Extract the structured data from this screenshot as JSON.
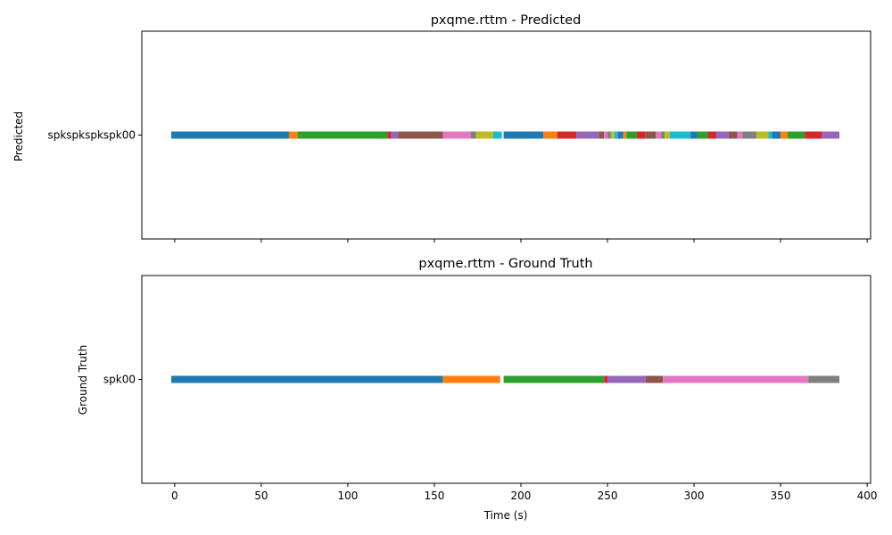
{
  "chart_data": [
    {
      "type": "timeline",
      "title": "pxqme.rttm - Predicted",
      "ylabel": "Predicted",
      "xlabel": "",
      "xlim": [
        -19,
        402
      ],
      "xticks": [
        0,
        50,
        100,
        150,
        200,
        250,
        300,
        350,
        400
      ],
      "show_xtick_labels": false,
      "grid": false,
      "rows": [
        "spkspkspkspk00"
      ],
      "segments": [
        {
          "start": -2,
          "end": 66,
          "color": "#1f77b4"
        },
        {
          "start": 66,
          "end": 71,
          "color": "#ff7f0e"
        },
        {
          "start": 71,
          "end": 123,
          "color": "#2ca02c"
        },
        {
          "start": 123,
          "end": 125,
          "color": "#d62728"
        },
        {
          "start": 125,
          "end": 129,
          "color": "#9467bd"
        },
        {
          "start": 129,
          "end": 155,
          "color": "#8c564b"
        },
        {
          "start": 155,
          "end": 171,
          "color": "#e377c2"
        },
        {
          "start": 171,
          "end": 174,
          "color": "#7f7f7f"
        },
        {
          "start": 174,
          "end": 184,
          "color": "#bcbd22"
        },
        {
          "start": 184,
          "end": 189,
          "color": "#17becf"
        },
        {
          "start": 190,
          "end": 213,
          "color": "#1f77b4"
        },
        {
          "start": 213,
          "end": 221,
          "color": "#ff7f0e"
        },
        {
          "start": 221,
          "end": 232,
          "color": "#d62728"
        },
        {
          "start": 232,
          "end": 245,
          "color": "#9467bd"
        },
        {
          "start": 245,
          "end": 248,
          "color": "#8c564b"
        },
        {
          "start": 248,
          "end": 250,
          "color": "#e377c2"
        },
        {
          "start": 250,
          "end": 252,
          "color": "#7f7f7f"
        },
        {
          "start": 252,
          "end": 254,
          "color": "#bcbd22"
        },
        {
          "start": 254,
          "end": 256,
          "color": "#17becf"
        },
        {
          "start": 256,
          "end": 259,
          "color": "#1f77b4"
        },
        {
          "start": 259,
          "end": 261,
          "color": "#ff7f0e"
        },
        {
          "start": 261,
          "end": 267,
          "color": "#2ca02c"
        },
        {
          "start": 267,
          "end": 272,
          "color": "#d62728"
        },
        {
          "start": 272,
          "end": 278,
          "color": "#8c564b"
        },
        {
          "start": 278,
          "end": 281,
          "color": "#e377c2"
        },
        {
          "start": 281,
          "end": 283,
          "color": "#7f7f7f"
        },
        {
          "start": 283,
          "end": 286,
          "color": "#bcbd22"
        },
        {
          "start": 286,
          "end": 298,
          "color": "#17becf"
        },
        {
          "start": 298,
          "end": 302,
          "color": "#1f77b4"
        },
        {
          "start": 302,
          "end": 308,
          "color": "#2ca02c"
        },
        {
          "start": 308,
          "end": 313,
          "color": "#d62728"
        },
        {
          "start": 313,
          "end": 320,
          "color": "#9467bd"
        },
        {
          "start": 320,
          "end": 325,
          "color": "#8c564b"
        },
        {
          "start": 325,
          "end": 328,
          "color": "#e377c2"
        },
        {
          "start": 328,
          "end": 336,
          "color": "#7f7f7f"
        },
        {
          "start": 336,
          "end": 343,
          "color": "#bcbd22"
        },
        {
          "start": 343,
          "end": 345,
          "color": "#17becf"
        },
        {
          "start": 345,
          "end": 350,
          "color": "#1f77b4"
        },
        {
          "start": 350,
          "end": 354,
          "color": "#ff7f0e"
        },
        {
          "start": 354,
          "end": 364,
          "color": "#2ca02c"
        },
        {
          "start": 364,
          "end": 374,
          "color": "#d62728"
        },
        {
          "start": 374,
          "end": 384,
          "color": "#9467bd"
        }
      ]
    },
    {
      "type": "timeline",
      "title": "pxqme.rttm - Ground Truth",
      "ylabel": "Ground Truth",
      "xlabel": "Time (s)",
      "xlim": [
        -19,
        402
      ],
      "xticks": [
        0,
        50,
        100,
        150,
        200,
        250,
        300,
        350,
        400
      ],
      "show_xtick_labels": true,
      "grid": false,
      "rows": [
        "spk00"
      ],
      "segments": [
        {
          "start": -2,
          "end": 155,
          "color": "#1f77b4"
        },
        {
          "start": 155,
          "end": 188,
          "color": "#ff7f0e"
        },
        {
          "start": 190,
          "end": 248,
          "color": "#2ca02c"
        },
        {
          "start": 248,
          "end": 250,
          "color": "#d62728"
        },
        {
          "start": 250,
          "end": 272,
          "color": "#9467bd"
        },
        {
          "start": 272,
          "end": 282,
          "color": "#8c564b"
        },
        {
          "start": 282,
          "end": 366,
          "color": "#e377c2"
        },
        {
          "start": 366,
          "end": 384,
          "color": "#7f7f7f"
        }
      ]
    }
  ]
}
